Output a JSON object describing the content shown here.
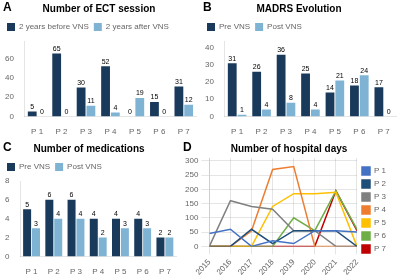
{
  "chart_data": [
    {
      "type": "bar",
      "title": "Number of ECT session",
      "annotations": [
        "A"
      ],
      "categories": [
        "P 1",
        "P 2",
        "P 3",
        "P 4",
        "P 5",
        "P 6",
        "P 7"
      ],
      "series": [
        {
          "name": "2 years before VNS",
          "color": "#1a3a5c",
          "values": [
            5,
            65,
            30,
            52,
            0,
            15,
            31
          ]
        },
        {
          "name": "2 years after VNS",
          "color": "#7fb3d3",
          "values": [
            0,
            0,
            11,
            4,
            19,
            0,
            12
          ]
        }
      ],
      "ylim": [
        0,
        78
      ],
      "yticks": [
        0,
        20,
        40,
        60
      ],
      "grid": false,
      "legend": "upper left",
      "data_labels": true
    },
    {
      "type": "bar",
      "title": "MADRS Evolution",
      "annotations": [
        "B"
      ],
      "categories": [
        "P 1",
        "P 2",
        "P 3",
        "P 4",
        "P 5",
        "P 6",
        "P 7"
      ],
      "series": [
        {
          "name": "Pre VNS",
          "color": "#1a3a5c",
          "values": [
            31,
            26,
            36,
            25,
            14,
            18,
            17
          ]
        },
        {
          "name": "Post VNS",
          "color": "#7fb3d3",
          "values": [
            1,
            4,
            8,
            4,
            21,
            24,
            0
          ]
        }
      ],
      "ylim": [
        0,
        44
      ],
      "yticks": [
        0,
        10,
        20,
        30,
        40
      ],
      "grid": false,
      "legend": "upper left",
      "data_labels": true
    },
    {
      "type": "bar",
      "title": "Number of medications",
      "annotations": [
        "C"
      ],
      "categories": [
        "P 1",
        "P 2",
        "P 3",
        "P 4",
        "P 5",
        "P 6",
        "P 7"
      ],
      "series": [
        {
          "name": "Pre VNS",
          "color": "#1a3a5c",
          "values": [
            5,
            6,
            6,
            4,
            4,
            4,
            2
          ]
        },
        {
          "name": "Post VNS",
          "color": "#7fb3d3",
          "values": [
            3,
            4,
            4,
            2,
            3,
            3,
            2
          ]
        }
      ],
      "ylim": [
        0,
        8
      ],
      "yticks": [
        0,
        2,
        4,
        6,
        8
      ],
      "grid": false,
      "legend": "upper left",
      "data_labels": true
    },
    {
      "type": "line",
      "title": "Number of hospital days",
      "annotations": [
        "D"
      ],
      "x": [
        2015,
        2016,
        2017,
        2018,
        2019,
        2020,
        2021,
        2022
      ],
      "series": [
        {
          "name": "P 1",
          "color": "#4472c4",
          "values": [
            45,
            60,
            0,
            20,
            10,
            55,
            55,
            50
          ]
        },
        {
          "name": "P 2",
          "color": "#1f4e79",
          "values": [
            0,
            0,
            60,
            10,
            55,
            55,
            55,
            0
          ]
        },
        {
          "name": "P 3",
          "color": "#808080",
          "values": [
            0,
            160,
            140,
            130,
            55,
            55,
            0,
            0
          ]
        },
        {
          "name": "P 4",
          "color": "#ed7d31",
          "values": [
            0,
            0,
            55,
            270,
            280,
            0,
            0,
            0
          ]
        },
        {
          "name": "P 5",
          "color": "#ffc000",
          "values": [
            0,
            0,
            0,
            140,
            185,
            185,
            190,
            0
          ]
        },
        {
          "name": "P 6",
          "color": "#70ad47",
          "values": [
            0,
            0,
            0,
            0,
            100,
            55,
            195,
            60
          ]
        },
        {
          "name": "P 7",
          "color": "#c00000",
          "values": [
            0,
            0,
            0,
            0,
            0,
            0,
            195,
            55
          ]
        }
      ],
      "xlim": [
        2015,
        2022
      ],
      "xticks": [
        2015,
        2016,
        2017,
        2018,
        2019,
        2020,
        2021,
        2022
      ],
      "ylim": [
        0,
        310
      ],
      "yticks": [
        0,
        50,
        100,
        150,
        200,
        250,
        300
      ],
      "grid": true,
      "legend": "right"
    }
  ]
}
